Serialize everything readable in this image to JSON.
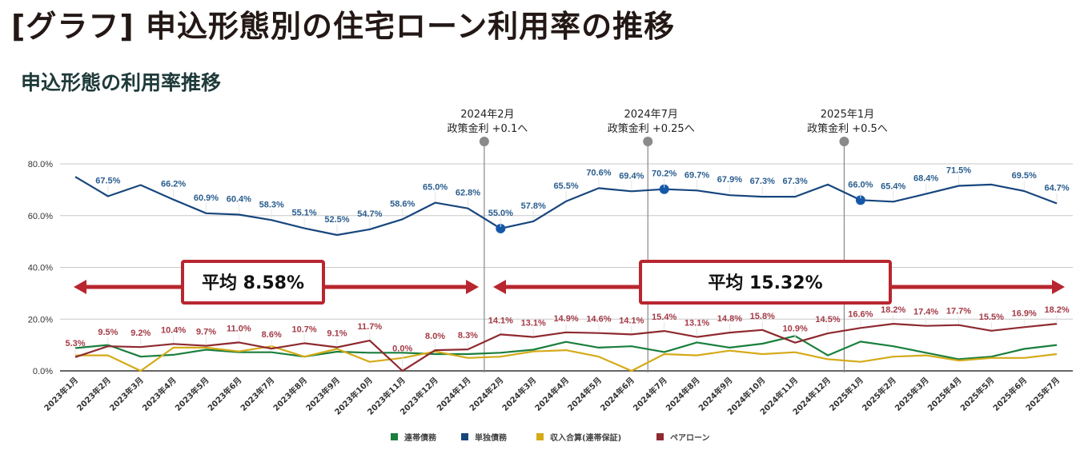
{
  "header": {
    "title": "[グラフ] 申込形態別の住宅ローン利用率の推移",
    "subtitle": "申込形態の利用率推移"
  },
  "chart_data": {
    "type": "line",
    "title": "申込形態の利用率推移",
    "xlabel": "",
    "ylabel": "",
    "ylim": [
      0,
      80
    ],
    "yticks": [
      "0.0%",
      "20.0%",
      "40.0%",
      "60.0%",
      "80.0%"
    ],
    "ytick_values": [
      0,
      20,
      40,
      60,
      80
    ],
    "grid": true,
    "legend_position": "bottom-center",
    "categories": [
      "2023年1月",
      "2023年2月",
      "2023年3月",
      "2023年4月",
      "2023年5月",
      "2023年6月",
      "2023年7月",
      "2023年8月",
      "2023年9月",
      "2023年10月",
      "2023年11月",
      "2023年12月",
      "2024年1月",
      "2024年2月",
      "2024年3月",
      "2024年4月",
      "2024年5月",
      "2024年6月",
      "2024年7月",
      "2024年8月",
      "2024年9月",
      "2024年10月",
      "2024年11月",
      "2024年12月",
      "2025年1月",
      "2025年2月",
      "2025年3月",
      "2025年4月",
      "2025年5月",
      "2025年6月",
      "2025年7月"
    ],
    "series": [
      {
        "name": "連帯債務",
        "color": "#1a7f3c",
        "values": [
          8.8,
          10.0,
          5.5,
          6.2,
          8.2,
          7.2,
          7.2,
          5.5,
          7.4,
          7.0,
          7.0,
          6.5,
          6.5,
          7.0,
          8.2,
          11.2,
          9.0,
          9.5,
          7.3,
          11.0,
          9.0,
          10.5,
          13.5,
          6.0,
          11.3,
          9.5,
          7.0,
          4.5,
          5.5,
          8.5,
          10.0
        ],
        "labels": []
      },
      {
        "name": "単独債務",
        "color": "#17467d",
        "values": [
          75.0,
          67.5,
          71.8,
          66.2,
          60.9,
          60.4,
          58.3,
          55.1,
          52.5,
          54.7,
          58.6,
          65.0,
          62.8,
          55.0,
          57.8,
          65.5,
          70.6,
          69.4,
          70.2,
          69.7,
          67.9,
          67.3,
          67.3,
          72.0,
          66.0,
          65.4,
          68.4,
          71.5,
          72.0,
          69.5,
          64.7
        ],
        "labels": [
          "",
          "67.5%",
          "",
          "66.2%",
          "60.9%",
          "60.4%",
          "58.3%",
          "55.1%",
          "52.5%",
          "54.7%",
          "58.6%",
          "65.0%",
          "62.8%",
          "55.0%",
          "57.8%",
          "65.5%",
          "70.6%",
          "69.4%",
          "70.2%",
          "69.7%",
          "67.9%",
          "67.3%",
          "67.3%",
          "",
          "66.0%",
          "65.4%",
          "68.4%",
          "71.5%",
          "",
          "69.5%",
          "64.7%"
        ],
        "markers": [
          13,
          18,
          24
        ]
      },
      {
        "name": "収入合算(連帯保証)",
        "color": "#d4aa18",
        "values": [
          6.0,
          6.0,
          0.0,
          9.0,
          9.0,
          7.5,
          9.5,
          5.5,
          8.5,
          3.5,
          5.0,
          7.5,
          5.0,
          5.5,
          7.5,
          8.0,
          5.5,
          0.0,
          6.5,
          6.0,
          7.8,
          6.5,
          7.2,
          4.5,
          3.5,
          5.5,
          6.0,
          4.0,
          5.0,
          5.0,
          6.5
        ],
        "labels": []
      },
      {
        "name": "ペアローン",
        "color": "#8e2a30",
        "values": [
          5.3,
          9.5,
          9.2,
          10.4,
          9.7,
          11.0,
          8.6,
          10.7,
          9.1,
          11.7,
          0.0,
          8.0,
          8.3,
          14.1,
          13.1,
          14.9,
          14.6,
          14.1,
          15.4,
          13.1,
          14.8,
          15.8,
          10.9,
          14.5,
          16.6,
          18.2,
          17.4,
          17.7,
          15.5,
          16.9,
          18.2
        ],
        "labels": [
          "5.3%",
          "9.5%",
          "9.2%",
          "10.4%",
          "9.7%",
          "11.0%",
          "8.6%",
          "10.7%",
          "9.1%",
          "11.7%",
          "0.0%",
          "8.0%",
          "8.3%",
          "14.1%",
          "13.1%",
          "14.9%",
          "14.6%",
          "14.1%",
          "15.4%",
          "13.1%",
          "14.8%",
          "15.8%",
          "10.9%",
          "14.5%",
          "16.6%",
          "18.2%",
          "17.4%",
          "17.7%",
          "15.5%",
          "16.9%",
          "18.2%"
        ]
      }
    ],
    "annotations": [
      {
        "after_index": 12.5,
        "line1": "2024年2月",
        "line2": "政策金利 +0.1へ"
      },
      {
        "after_index": 17.5,
        "line1": "2024年7月",
        "line2": "政策金利 +0.25へ"
      },
      {
        "after_index": 23.5,
        "line1": "2025年1月",
        "line2": "政策金利 +0.5へ"
      }
    ],
    "averages": [
      {
        "label": "平均 8.58%",
        "from_index": 0,
        "to_index": 12.5,
        "series": "ペアローン"
      },
      {
        "label": "平均 15.32%",
        "from_index": 12.5,
        "to_index": 30,
        "series": "ペアローン"
      }
    ]
  }
}
